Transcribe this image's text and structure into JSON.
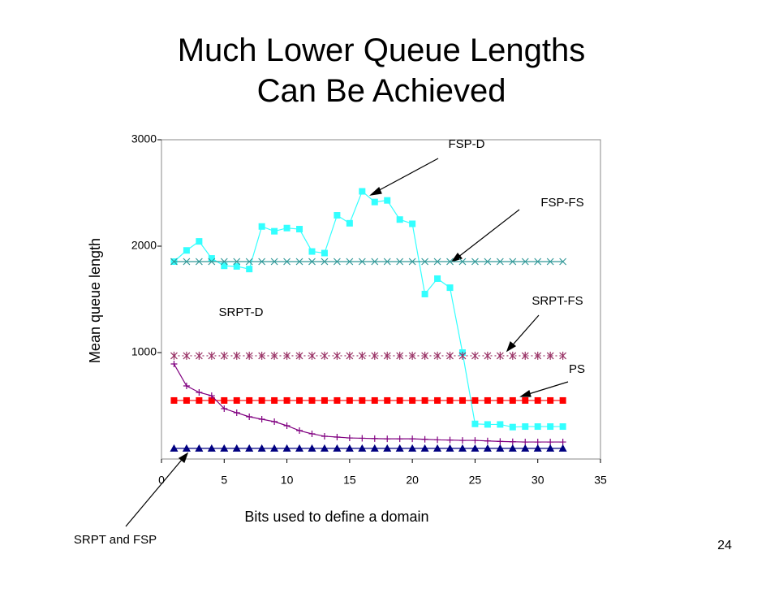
{
  "title_lines": [
    "Much Lower Queue Lengths",
    "Can Be Achieved"
  ],
  "page_number": "24",
  "chart_data": {
    "type": "line",
    "x_label": "Bits used to define a domain",
    "y_label": "Mean queue length",
    "x": [
      1,
      2,
      3,
      4,
      5,
      6,
      7,
      8,
      9,
      10,
      11,
      12,
      13,
      14,
      15,
      16,
      17,
      18,
      19,
      20,
      21,
      22,
      23,
      24,
      25,
      26,
      27,
      28,
      29,
      30,
      31,
      32
    ],
    "xlim": [
      0,
      35
    ],
    "xticks": [
      0,
      5,
      10,
      15,
      20,
      25,
      30,
      35
    ],
    "ylim": [
      0,
      3000
    ],
    "yticks": [
      1000,
      2000,
      3000
    ],
    "series": [
      {
        "name": "FSP-D",
        "color": "#33ffff",
        "marker": "square",
        "line": "solid",
        "values": [
          1855,
          1960,
          2045,
          1885,
          1815,
          1810,
          1785,
          2185,
          2140,
          2170,
          2160,
          1950,
          1935,
          2290,
          2215,
          2515,
          2415,
          2430,
          2250,
          2210,
          1550,
          1695,
          1610,
          1000,
          330,
          325,
          325,
          300,
          305,
          305,
          305,
          305
        ]
      },
      {
        "name": "FSP-FS",
        "color": "#339999",
        "marker": "x",
        "line": "solid",
        "values": [
          1855,
          1855,
          1855,
          1855,
          1855,
          1855,
          1855,
          1855,
          1855,
          1855,
          1855,
          1855,
          1855,
          1855,
          1855,
          1855,
          1855,
          1855,
          1855,
          1855,
          1855,
          1855,
          1855,
          1855,
          1855,
          1855,
          1855,
          1855,
          1855,
          1855,
          1855,
          1855
        ]
      },
      {
        "name": "SRPT-FS",
        "color": "#993366",
        "marker": "asterisk",
        "line": "dotted",
        "values": [
          970,
          970,
          970,
          970,
          970,
          970,
          970,
          970,
          970,
          970,
          970,
          970,
          970,
          970,
          970,
          970,
          970,
          970,
          970,
          970,
          970,
          970,
          970,
          970,
          970,
          970,
          970,
          970,
          970,
          970,
          970,
          970
        ]
      },
      {
        "name": "PS",
        "color": "#ff0000",
        "marker": "square",
        "line": "solid",
        "values": [
          550,
          550,
          550,
          550,
          550,
          550,
          550,
          550,
          550,
          550,
          550,
          550,
          550,
          550,
          550,
          550,
          550,
          550,
          550,
          550,
          550,
          550,
          550,
          550,
          550,
          550,
          550,
          550,
          550,
          550,
          550,
          550
        ]
      },
      {
        "name": "SRPT-D",
        "color": "#800080",
        "marker": "plus",
        "line": "solid",
        "values": [
          893,
          687,
          626,
          595,
          473,
          435,
          397,
          374,
          351,
          313,
          267,
          237,
          214,
          206,
          198,
          195,
          192,
          190,
          190,
          190,
          185,
          180,
          178,
          175,
          175,
          170,
          165,
          162,
          160,
          160,
          160,
          160
        ]
      },
      {
        "name": "SRPT and FSP",
        "color": "#000080",
        "marker": "triangle",
        "line": "solid",
        "values": [
          100,
          100,
          100,
          100,
          100,
          100,
          100,
          100,
          100,
          100,
          100,
          100,
          100,
          100,
          100,
          100,
          100,
          100,
          100,
          100,
          100,
          100,
          100,
          100,
          100,
          100,
          100,
          100,
          100,
          100,
          100,
          100
        ]
      }
    ]
  }
}
